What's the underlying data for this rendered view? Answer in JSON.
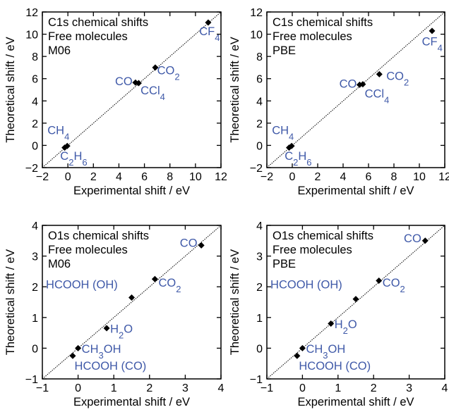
{
  "chart_data": [
    {
      "type": "scatter",
      "title": [
        "C1s chemical shifts",
        "Free molecules",
        "M06"
      ],
      "xlabel": "Experimental shift / eV",
      "ylabel": "Theoretical shift / eV",
      "xlim": [
        -2,
        12
      ],
      "ylim": [
        -2,
        12
      ],
      "xticks": [
        "−2",
        "0",
        "2",
        "4",
        "6",
        "8",
        "10",
        "12"
      ],
      "yticks": [
        "−2",
        "0",
        "2",
        "4",
        "6",
        "8",
        "10",
        "12"
      ],
      "diagonal": true,
      "accent": "#3f59a8",
      "points": [
        {
          "label": "CH4",
          "x": -0.05,
          "y": -0.05
        },
        {
          "label": "C2H6",
          "x": -0.25,
          "y": -0.2
        },
        {
          "label": "CO",
          "x": 5.3,
          "y": 5.65
        },
        {
          "label": "CCl4",
          "x": 5.55,
          "y": 5.6
        },
        {
          "label": "CO2",
          "x": 6.85,
          "y": 7.0
        },
        {
          "label": "CF4",
          "x": 11.0,
          "y": 11.05
        }
      ],
      "labels": [
        {
          "text": "CH",
          "sub": "4",
          "x": -1.6,
          "y": 1.0
        },
        {
          "text": "C",
          "sub": "2",
          "text2": "H",
          "sub2": "6",
          "x": -0.6,
          "y": -1.3
        },
        {
          "text": "CO",
          "x": 3.7,
          "y": 5.4
        },
        {
          "text": "CCl",
          "sub": "4",
          "x": 5.7,
          "y": 4.6
        },
        {
          "text": "CO",
          "sub": "2",
          "x": 7.0,
          "y": 6.4
        },
        {
          "text": "CF",
          "sub": "4",
          "x": 10.3,
          "y": 9.9
        }
      ]
    },
    {
      "type": "scatter",
      "title": [
        "C1s chemical shifts",
        "Free molecules",
        "PBE"
      ],
      "xlabel": "Experimental shift / eV",
      "ylabel": "Theoretical shift / eV",
      "xlim": [
        -2,
        12
      ],
      "ylim": [
        -2,
        12
      ],
      "xticks": [
        "−2",
        "0",
        "2",
        "4",
        "6",
        "8",
        "10",
        "12"
      ],
      "yticks": [
        "−2",
        "0",
        "2",
        "4",
        "6",
        "8",
        "10",
        "12"
      ],
      "diagonal": true,
      "accent": "#3f59a8",
      "points": [
        {
          "label": "CH4",
          "x": -0.05,
          "y": -0.05
        },
        {
          "label": "C2H6",
          "x": -0.25,
          "y": -0.2
        },
        {
          "label": "CO",
          "x": 5.3,
          "y": 5.45
        },
        {
          "label": "CCl4",
          "x": 5.55,
          "y": 5.5
        },
        {
          "label": "CO2",
          "x": 6.85,
          "y": 6.4
        },
        {
          "label": "CF4",
          "x": 11.0,
          "y": 10.3
        }
      ],
      "labels": [
        {
          "text": "CH",
          "sub": "4",
          "x": -1.6,
          "y": 1.0
        },
        {
          "text": "C",
          "sub": "2",
          "text2": "H",
          "sub2": "6",
          "x": -0.6,
          "y": -1.3
        },
        {
          "text": "CO",
          "x": 3.7,
          "y": 5.2
        },
        {
          "text": "CCl",
          "sub": "4",
          "x": 5.7,
          "y": 4.3
        },
        {
          "text": "CO",
          "sub": "2",
          "x": 7.4,
          "y": 5.9
        },
        {
          "text": "CF",
          "sub": "4",
          "x": 10.2,
          "y": 9.0
        }
      ]
    },
    {
      "type": "scatter",
      "title": [
        "O1s chemical shifts",
        "Free molecules",
        "M06"
      ],
      "xlabel": "Experimental shift / eV",
      "ylabel": "Theoretical shift / eV",
      "xlim": [
        -1,
        4
      ],
      "ylim": [
        -1,
        4
      ],
      "xticks": [
        "−1",
        "0",
        "1",
        "2",
        "3",
        "4"
      ],
      "yticks": [
        "−1",
        "0",
        "1",
        "2",
        "3",
        "4"
      ],
      "diagonal": true,
      "accent": "#3f59a8",
      "points": [
        {
          "label": "HCOOH (CO)",
          "x": -0.15,
          "y": -0.25
        },
        {
          "label": "CH3OH",
          "x": 0.0,
          "y": 0.0
        },
        {
          "label": "H2O",
          "x": 0.8,
          "y": 0.65
        },
        {
          "label": "HCOOH (OH)",
          "x": 1.5,
          "y": 1.65
        },
        {
          "label": "CO2",
          "x": 2.15,
          "y": 2.25
        },
        {
          "label": "CO",
          "x": 3.45,
          "y": 3.35
        }
      ],
      "labels": [
        {
          "text": "HCOOH (CO)",
          "x": -0.1,
          "y": -0.7
        },
        {
          "text": "CH",
          "sub": "3",
          "text2": "OH",
          "x": 0.1,
          "y": -0.15
        },
        {
          "text": "H",
          "sub": "2",
          "text2": "O",
          "x": 0.9,
          "y": 0.5
        },
        {
          "text": "HCOOH (OH)",
          "x": -0.9,
          "y": 1.95
        },
        {
          "text": "CO",
          "sub": "2",
          "x": 2.25,
          "y": 2.0
        },
        {
          "text": "CO",
          "x": 2.85,
          "y": 3.3
        }
      ]
    },
    {
      "type": "scatter",
      "title": [
        "O1s chemical shifts",
        "Free molecules",
        "PBE"
      ],
      "xlabel": "Experimental shift / eV",
      "ylabel": "Theoretical shift / eV",
      "xlim": [
        -1,
        4
      ],
      "ylim": [
        -1,
        4
      ],
      "xticks": [
        "−1",
        "0",
        "1",
        "2",
        "3",
        "4"
      ],
      "yticks": [
        "−1",
        "0",
        "1",
        "2",
        "3",
        "4"
      ],
      "diagonal": true,
      "accent": "#3f59a8",
      "points": [
        {
          "label": "HCOOH (CO)",
          "x": -0.15,
          "y": -0.25
        },
        {
          "label": "CH3OH",
          "x": 0.0,
          "y": 0.0
        },
        {
          "label": "H2O",
          "x": 0.8,
          "y": 0.8
        },
        {
          "label": "HCOOH (OH)",
          "x": 1.5,
          "y": 1.6
        },
        {
          "label": "CO2",
          "x": 2.15,
          "y": 2.2
        },
        {
          "label": "CO",
          "x": 3.45,
          "y": 3.5
        }
      ],
      "labels": [
        {
          "text": "HCOOH (CO)",
          "x": -0.1,
          "y": -0.7
        },
        {
          "text": "CH",
          "sub": "3",
          "text2": "OH",
          "x": 0.1,
          "y": -0.15
        },
        {
          "text": "H",
          "sub": "2",
          "text2": "O",
          "x": 0.9,
          "y": 0.65
        },
        {
          "text": "HCOOH (OH)",
          "x": -0.9,
          "y": 1.95
        },
        {
          "text": "CO",
          "sub": "2",
          "x": 2.25,
          "y": 2.0
        },
        {
          "text": "CO",
          "x": 2.85,
          "y": 3.45
        }
      ]
    }
  ]
}
